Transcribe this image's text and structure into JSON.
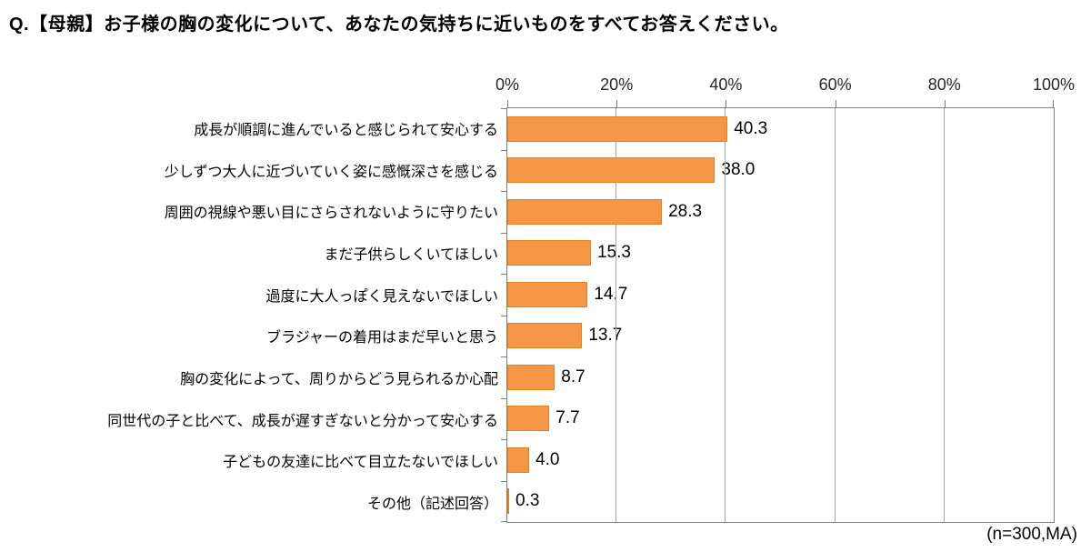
{
  "title": "Q.【母親】お子様の胸の変化について、あなたの気持ちに近いものをすべてお答えください。",
  "footer": {
    "note": "(n=300,MA)"
  },
  "chart_data": {
    "type": "bar",
    "orientation": "horizontal",
    "title": "Q.【母親】お子様の胸の変化について、あなたの気持ちに近いものをすべてお答えください。",
    "categories": [
      "成長が順調に進んでいると感じられて安心する",
      "少しずつ大人に近づいていく姿に感慨深さを感じる",
      "周囲の視線や悪い目にさらされないように守りたい",
      "まだ子供らしくいてほしい",
      "過度に大人っぽく見えないでほしい",
      "ブラジャーの着用はまだ早いと思う",
      "胸の変化によって、周りからどう見られるか心配",
      "同世代の子と比べて、成長が遅すぎないと分かって安心する",
      "子どもの友達に比べて目立たないでほしい",
      "その他（記述回答）"
    ],
    "values": [
      40.3,
      38.0,
      28.3,
      15.3,
      14.7,
      13.7,
      8.7,
      7.7,
      4.0,
      0.3
    ],
    "value_labels": [
      "40.3",
      "38.0",
      "28.3",
      "15.3",
      "14.7",
      "13.7",
      "8.7",
      "7.7",
      "4.0",
      "0.3"
    ],
    "x_ticks": [
      "0%",
      "20%",
      "40%",
      "60%",
      "80%",
      "100%"
    ],
    "xlim": [
      0,
      100
    ],
    "grid": true,
    "sample_note": "(n=300,MA)",
    "bar_color": "#f79646",
    "bar_border_color": "#e0801f",
    "gridline_color": "#a6a6a6",
    "axis_color": "#808080"
  }
}
